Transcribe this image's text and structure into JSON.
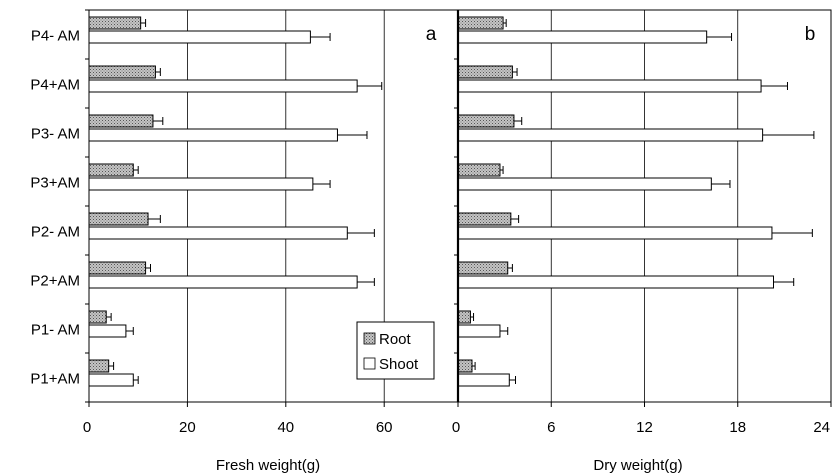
{
  "chart_data": [
    {
      "type": "bar",
      "orientation": "horizontal",
      "panel_label": "a",
      "xlabel": "Fresh weight(g)",
      "xlim": [
        0,
        75
      ],
      "xticks": [
        0,
        20,
        40,
        60
      ],
      "grid": "vertical",
      "categories": [
        "P4- AM",
        "P4+AM",
        "P3- AM",
        "P3+AM",
        "P2- AM",
        "P2+AM",
        "P1- AM",
        "P1+AM"
      ],
      "series": [
        {
          "name": "Root",
          "pattern": "stippled",
          "values": [
            10.5,
            13.5,
            13,
            9,
            12,
            11.5,
            3.5,
            4
          ],
          "errors": [
            1,
            1,
            2,
            1,
            2.5,
            1,
            1,
            1
          ]
        },
        {
          "name": "Shoot",
          "pattern": "white",
          "values": [
            45,
            54.5,
            50.5,
            45.5,
            52.5,
            54.5,
            7.5,
            9
          ],
          "errors": [
            4,
            5,
            6,
            3.5,
            5.5,
            3.5,
            1.5,
            1
          ]
        }
      ],
      "legend": {
        "placement": "bottom-right"
      }
    },
    {
      "type": "bar",
      "orientation": "horizontal",
      "panel_label": "b",
      "xlabel": "Dry weight(g)",
      "xlim": [
        0,
        24
      ],
      "xticks": [
        0,
        6,
        12,
        18,
        24
      ],
      "grid": "vertical",
      "categories": [
        "P4- AM",
        "P4+AM",
        "P3- AM",
        "P3+AM",
        "P2- AM",
        "P2+AM",
        "P1- AM",
        "P1+AM"
      ],
      "series": [
        {
          "name": "Root",
          "pattern": "stippled",
          "values": [
            2.9,
            3.5,
            3.6,
            2.7,
            3.4,
            3.2,
            0.8,
            0.9
          ],
          "errors": [
            0.2,
            0.3,
            0.5,
            0.2,
            0.5,
            0.3,
            0.2,
            0.2
          ]
        },
        {
          "name": "Shoot",
          "pattern": "white",
          "values": [
            16,
            19.5,
            19.6,
            16.3,
            20.2,
            20.3,
            2.7,
            3.3
          ],
          "errors": [
            1.6,
            1.7,
            3.3,
            1.2,
            2.6,
            1.3,
            0.5,
            0.4
          ]
        }
      ]
    }
  ]
}
